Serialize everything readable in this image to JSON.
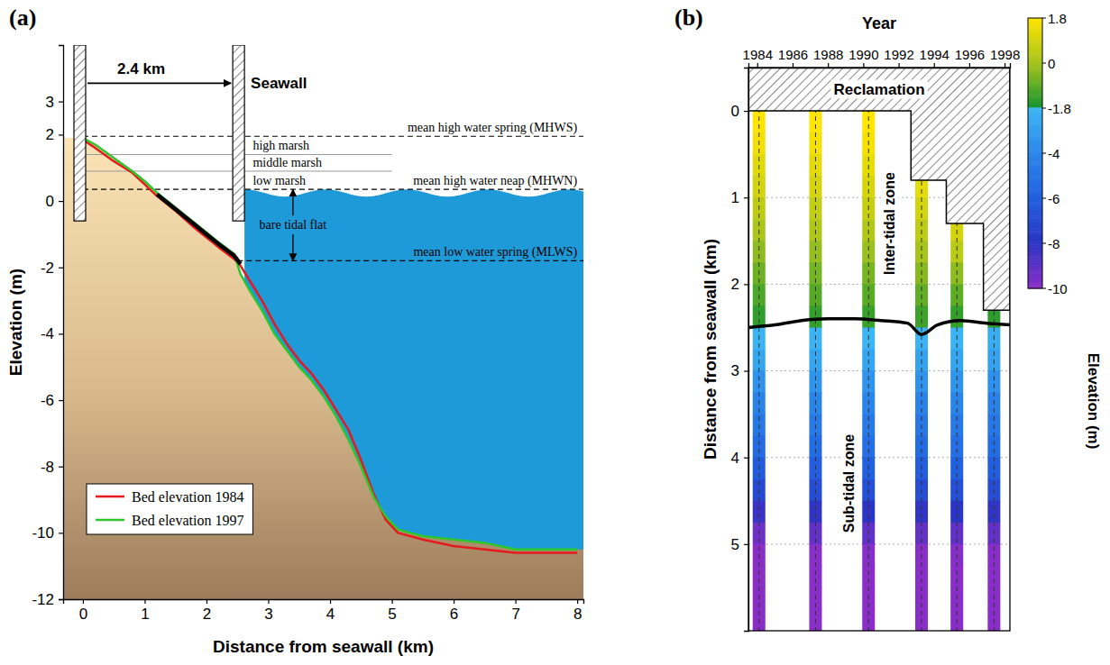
{
  "chart_data": [
    {
      "type": "line",
      "title": "(a)",
      "x_label": "Distance from seawall (km)",
      "y_label": "Elevation (m)",
      "xlim": [
        -0.32,
        8.1
      ],
      "xticks": [
        0,
        1,
        2,
        3,
        4,
        5,
        6,
        7,
        8
      ],
      "ylim": [
        -12,
        4.7
      ],
      "yticks": [
        -12,
        -10,
        -8,
        -6,
        -4,
        -2,
        0,
        2,
        3
      ],
      "x": [
        0,
        0.2,
        0.5,
        0.8,
        1.0,
        1.2,
        1.5,
        1.8,
        2.0,
        2.2,
        2.45,
        2.55,
        2.7,
        2.9,
        3.1,
        3.3,
        3.5,
        3.7,
        3.9,
        4.1,
        4.3,
        4.5,
        4.7,
        4.9,
        5.1,
        5.5,
        6.0,
        6.5,
        7.0,
        7.5,
        8.0
      ],
      "series": [
        {
          "name": "Bed elevation 1984",
          "color": "#e41a1c",
          "values": [
            1.85,
            1.6,
            1.2,
            0.85,
            0.5,
            0.15,
            -0.3,
            -0.8,
            -1.1,
            -1.4,
            -1.75,
            -1.95,
            -2.4,
            -3.0,
            -3.7,
            -4.3,
            -4.8,
            -5.2,
            -5.7,
            -6.3,
            -6.9,
            -7.8,
            -8.8,
            -9.6,
            -10.0,
            -10.2,
            -10.4,
            -10.5,
            -10.6,
            -10.6,
            -10.6
          ]
        },
        {
          "name": "Bed elevation 1997",
          "color": "#2dc72d",
          "values": [
            1.9,
            1.7,
            1.3,
            0.9,
            0.6,
            0.25,
            -0.2,
            -0.65,
            -0.95,
            -1.25,
            -1.6,
            -2.2,
            -2.7,
            -3.3,
            -4.0,
            -4.5,
            -5.0,
            -5.4,
            -5.9,
            -6.5,
            -7.2,
            -8.0,
            -8.9,
            -9.5,
            -9.9,
            -10.1,
            -10.2,
            -10.3,
            -10.5,
            -10.5,
            -10.5
          ]
        },
        {
          "color": "#000000",
          "values": [
            null,
            null,
            null,
            null,
            null,
            0.2,
            -0.25,
            -0.7,
            -1.0,
            -1.3,
            -1.65,
            -1.9,
            null,
            null,
            null,
            null,
            null,
            null,
            null,
            null,
            null,
            null,
            null,
            null,
            null,
            null,
            null,
            null,
            null,
            null,
            null
          ]
        }
      ],
      "legend": "lower left",
      "seawall": {
        "label": "Seawall",
        "x": [
          -0.05,
          2.52
        ],
        "bottom": -0.6
      },
      "distance_arrow": {
        "label": "2.4 km",
        "y": 3.55
      },
      "levels": [
        {
          "label": "mean high water spring (MHWS)",
          "value": 1.95,
          "from": 0
        },
        {
          "label": "mean high water neap (MHWN)",
          "value": 0.35,
          "from": 0
        },
        {
          "label": "mean low water spring (MLWS)",
          "value": -1.8,
          "from": 2.5
        }
      ],
      "marsh": {
        "labels": [
          "high marsh",
          "middle marsh",
          "low marsh"
        ],
        "bounds": [
          1.95,
          1.4,
          0.9,
          0.35
        ],
        "x": 2.75,
        "to": 5.0
      },
      "tidal_flat": {
        "label": "bare tidal flat",
        "x": 3.4,
        "top": 0.35,
        "bottom": -1.8
      }
    },
    {
      "type": "heatmap",
      "title": "(b)",
      "x_label": "Year",
      "y_label": "Distance from seawall (km)",
      "xlim": [
        1983.5,
        1998.3
      ],
      "xticks": [
        1984,
        1986,
        1988,
        1990,
        1992,
        1994,
        1996,
        1998
      ],
      "ylim": [
        -0.5,
        6.0
      ],
      "yticks": [
        0,
        1,
        2,
        3,
        4,
        5
      ],
      "grid": true,
      "x": [
        1984.1,
        1987.3,
        1990.3,
        1993.3,
        1995.3,
        1997.4
      ],
      "distance": [
        0,
        0.25,
        0.5,
        0.75,
        1,
        1.25,
        1.5,
        1.75,
        2,
        2.25,
        2.5,
        2.75,
        3,
        3.25,
        3.5,
        3.75,
        4,
        4.25,
        4.5,
        4.75,
        5,
        5.25,
        5.5,
        5.75
      ],
      "cells": [
        [
          1.85,
          1.55,
          1.2,
          0.9,
          0.5,
          0.1,
          -0.3,
          -0.7,
          -1.1,
          -1.45,
          -1.9,
          -2.6,
          -3.5,
          -4.2,
          -4.8,
          -5.5,
          -6.2,
          -7.0,
          -8.3,
          -9.4,
          -10.1,
          -10.2,
          -10.3,
          -10.4
        ],
        [
          1.85,
          1.6,
          1.25,
          0.95,
          0.6,
          0.2,
          -0.2,
          -0.6,
          -1.0,
          -1.4,
          -1.9,
          -2.6,
          -3.4,
          -4.1,
          -4.7,
          -5.4,
          -6.1,
          -6.9,
          -8.1,
          -9.2,
          -10.0,
          -10.2,
          -10.3,
          -10.4
        ],
        [
          1.9,
          1.6,
          1.3,
          1.0,
          0.65,
          0.25,
          -0.15,
          -0.55,
          -0.95,
          -1.35,
          -1.85,
          -2.6,
          -3.4,
          -4.1,
          -4.7,
          -5.3,
          -6.0,
          -6.8,
          -8.0,
          -9.1,
          -9.9,
          -10.1,
          -10.2,
          -10.3
        ],
        [
          null,
          null,
          null,
          1.3,
          0.9,
          0.45,
          0.0,
          -0.4,
          -0.85,
          -1.3,
          -1.95,
          -2.7,
          -3.5,
          -4.2,
          -4.8,
          -5.4,
          -6.1,
          -6.9,
          -8.1,
          -9.2,
          -10.0,
          -10.1,
          -10.2,
          -10.3
        ],
        [
          null,
          null,
          null,
          null,
          null,
          0.9,
          0.4,
          -0.3,
          -0.9,
          -1.4,
          -1.9,
          -2.6,
          -3.4,
          -4.1,
          -4.7,
          -5.3,
          -6.0,
          -6.8,
          -8.0,
          -9.1,
          -9.9,
          -10.1,
          -10.2,
          -10.3
        ],
        [
          null,
          null,
          null,
          null,
          null,
          null,
          null,
          null,
          null,
          -1.5,
          -2.2,
          -2.8,
          -3.6,
          -4.3,
          -4.8,
          -5.4,
          -6.1,
          -6.9,
          -8.1,
          -9.2,
          -10.0,
          -10.1,
          -10.2,
          -10.3
        ]
      ],
      "colorbar": {
        "label": "Elevation (m)",
        "lim": [
          -10,
          1.8
        ],
        "ticks": [
          1.8,
          0,
          -1.8,
          -4,
          -6,
          -8,
          -10
        ]
      },
      "reclamation": {
        "label": "Reclamation",
        "x": [
          1983.5,
          1992.7,
          1992.7,
          1994.7,
          1994.7,
          1996.8,
          1996.8,
          1998.3
        ],
        "y": [
          0,
          0,
          0.8,
          0.8,
          1.3,
          1.3,
          2.3,
          2.3
        ]
      },
      "boundary": {
        "x": [
          1983.5,
          1985,
          1986.5,
          1988,
          1989.5,
          1991,
          1992.5,
          1993.3,
          1994.2,
          1995.5,
          1997,
          1998.3
        ],
        "y": [
          2.5,
          2.47,
          2.42,
          2.4,
          2.4,
          2.42,
          2.45,
          2.58,
          2.47,
          2.42,
          2.45,
          2.47
        ]
      },
      "annotations": [
        {
          "text": "Inter-tidal zone",
          "x": 1991.5,
          "y": 1.3
        },
        {
          "text": "Sub-tidal zone",
          "x": 1989.2,
          "y": 4.3
        }
      ]
    }
  ]
}
